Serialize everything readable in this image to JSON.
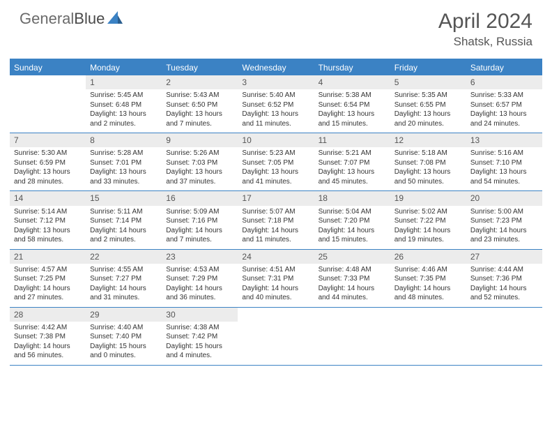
{
  "logo": {
    "part1": "General",
    "part2": "Blue"
  },
  "title": "April 2024",
  "location": "Shatsk, Russia",
  "colors": {
    "header_bar": "#3b82c4",
    "daynum_bg": "#ececec",
    "text": "#333333",
    "logo_gray": "#6a6a6a"
  },
  "weekdays": [
    "Sunday",
    "Monday",
    "Tuesday",
    "Wednesday",
    "Thursday",
    "Friday",
    "Saturday"
  ],
  "weeks": [
    [
      {
        "n": "",
        "empty": true
      },
      {
        "n": "1",
        "sunrise": "Sunrise: 5:45 AM",
        "sunset": "Sunset: 6:48 PM",
        "dl1": "Daylight: 13 hours",
        "dl2": "and 2 minutes."
      },
      {
        "n": "2",
        "sunrise": "Sunrise: 5:43 AM",
        "sunset": "Sunset: 6:50 PM",
        "dl1": "Daylight: 13 hours",
        "dl2": "and 7 minutes."
      },
      {
        "n": "3",
        "sunrise": "Sunrise: 5:40 AM",
        "sunset": "Sunset: 6:52 PM",
        "dl1": "Daylight: 13 hours",
        "dl2": "and 11 minutes."
      },
      {
        "n": "4",
        "sunrise": "Sunrise: 5:38 AM",
        "sunset": "Sunset: 6:54 PM",
        "dl1": "Daylight: 13 hours",
        "dl2": "and 15 minutes."
      },
      {
        "n": "5",
        "sunrise": "Sunrise: 5:35 AM",
        "sunset": "Sunset: 6:55 PM",
        "dl1": "Daylight: 13 hours",
        "dl2": "and 20 minutes."
      },
      {
        "n": "6",
        "sunrise": "Sunrise: 5:33 AM",
        "sunset": "Sunset: 6:57 PM",
        "dl1": "Daylight: 13 hours",
        "dl2": "and 24 minutes."
      }
    ],
    [
      {
        "n": "7",
        "sunrise": "Sunrise: 5:30 AM",
        "sunset": "Sunset: 6:59 PM",
        "dl1": "Daylight: 13 hours",
        "dl2": "and 28 minutes."
      },
      {
        "n": "8",
        "sunrise": "Sunrise: 5:28 AM",
        "sunset": "Sunset: 7:01 PM",
        "dl1": "Daylight: 13 hours",
        "dl2": "and 33 minutes."
      },
      {
        "n": "9",
        "sunrise": "Sunrise: 5:26 AM",
        "sunset": "Sunset: 7:03 PM",
        "dl1": "Daylight: 13 hours",
        "dl2": "and 37 minutes."
      },
      {
        "n": "10",
        "sunrise": "Sunrise: 5:23 AM",
        "sunset": "Sunset: 7:05 PM",
        "dl1": "Daylight: 13 hours",
        "dl2": "and 41 minutes."
      },
      {
        "n": "11",
        "sunrise": "Sunrise: 5:21 AM",
        "sunset": "Sunset: 7:07 PM",
        "dl1": "Daylight: 13 hours",
        "dl2": "and 45 minutes."
      },
      {
        "n": "12",
        "sunrise": "Sunrise: 5:18 AM",
        "sunset": "Sunset: 7:08 PM",
        "dl1": "Daylight: 13 hours",
        "dl2": "and 50 minutes."
      },
      {
        "n": "13",
        "sunrise": "Sunrise: 5:16 AM",
        "sunset": "Sunset: 7:10 PM",
        "dl1": "Daylight: 13 hours",
        "dl2": "and 54 minutes."
      }
    ],
    [
      {
        "n": "14",
        "sunrise": "Sunrise: 5:14 AM",
        "sunset": "Sunset: 7:12 PM",
        "dl1": "Daylight: 13 hours",
        "dl2": "and 58 minutes."
      },
      {
        "n": "15",
        "sunrise": "Sunrise: 5:11 AM",
        "sunset": "Sunset: 7:14 PM",
        "dl1": "Daylight: 14 hours",
        "dl2": "and 2 minutes."
      },
      {
        "n": "16",
        "sunrise": "Sunrise: 5:09 AM",
        "sunset": "Sunset: 7:16 PM",
        "dl1": "Daylight: 14 hours",
        "dl2": "and 7 minutes."
      },
      {
        "n": "17",
        "sunrise": "Sunrise: 5:07 AM",
        "sunset": "Sunset: 7:18 PM",
        "dl1": "Daylight: 14 hours",
        "dl2": "and 11 minutes."
      },
      {
        "n": "18",
        "sunrise": "Sunrise: 5:04 AM",
        "sunset": "Sunset: 7:20 PM",
        "dl1": "Daylight: 14 hours",
        "dl2": "and 15 minutes."
      },
      {
        "n": "19",
        "sunrise": "Sunrise: 5:02 AM",
        "sunset": "Sunset: 7:22 PM",
        "dl1": "Daylight: 14 hours",
        "dl2": "and 19 minutes."
      },
      {
        "n": "20",
        "sunrise": "Sunrise: 5:00 AM",
        "sunset": "Sunset: 7:23 PM",
        "dl1": "Daylight: 14 hours",
        "dl2": "and 23 minutes."
      }
    ],
    [
      {
        "n": "21",
        "sunrise": "Sunrise: 4:57 AM",
        "sunset": "Sunset: 7:25 PM",
        "dl1": "Daylight: 14 hours",
        "dl2": "and 27 minutes."
      },
      {
        "n": "22",
        "sunrise": "Sunrise: 4:55 AM",
        "sunset": "Sunset: 7:27 PM",
        "dl1": "Daylight: 14 hours",
        "dl2": "and 31 minutes."
      },
      {
        "n": "23",
        "sunrise": "Sunrise: 4:53 AM",
        "sunset": "Sunset: 7:29 PM",
        "dl1": "Daylight: 14 hours",
        "dl2": "and 36 minutes."
      },
      {
        "n": "24",
        "sunrise": "Sunrise: 4:51 AM",
        "sunset": "Sunset: 7:31 PM",
        "dl1": "Daylight: 14 hours",
        "dl2": "and 40 minutes."
      },
      {
        "n": "25",
        "sunrise": "Sunrise: 4:48 AM",
        "sunset": "Sunset: 7:33 PM",
        "dl1": "Daylight: 14 hours",
        "dl2": "and 44 minutes."
      },
      {
        "n": "26",
        "sunrise": "Sunrise: 4:46 AM",
        "sunset": "Sunset: 7:35 PM",
        "dl1": "Daylight: 14 hours",
        "dl2": "and 48 minutes."
      },
      {
        "n": "27",
        "sunrise": "Sunrise: 4:44 AM",
        "sunset": "Sunset: 7:36 PM",
        "dl1": "Daylight: 14 hours",
        "dl2": "and 52 minutes."
      }
    ],
    [
      {
        "n": "28",
        "sunrise": "Sunrise: 4:42 AM",
        "sunset": "Sunset: 7:38 PM",
        "dl1": "Daylight: 14 hours",
        "dl2": "and 56 minutes."
      },
      {
        "n": "29",
        "sunrise": "Sunrise: 4:40 AM",
        "sunset": "Sunset: 7:40 PM",
        "dl1": "Daylight: 15 hours",
        "dl2": "and 0 minutes."
      },
      {
        "n": "30",
        "sunrise": "Sunrise: 4:38 AM",
        "sunset": "Sunset: 7:42 PM",
        "dl1": "Daylight: 15 hours",
        "dl2": "and 4 minutes."
      },
      {
        "n": "",
        "empty": true
      },
      {
        "n": "",
        "empty": true
      },
      {
        "n": "",
        "empty": true
      },
      {
        "n": "",
        "empty": true
      }
    ]
  ]
}
